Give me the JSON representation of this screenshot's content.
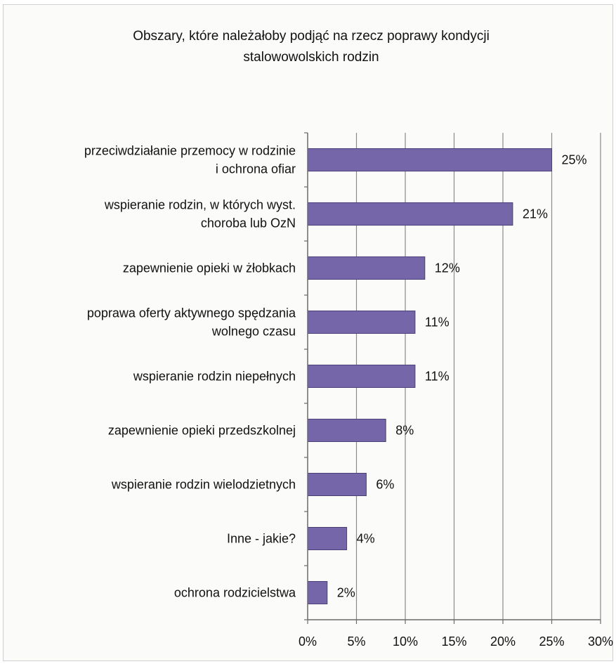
{
  "chart_data": {
    "type": "bar",
    "orientation": "horizontal",
    "title_lines": [
      "Obszary, które należałoby podjąć na rzecz poprawy kondycji",
      "stalowowolskich rodzin"
    ],
    "categories": [
      [
        "przeciwdziałanie przemocy w rodzinie",
        "i ochrona ofiar"
      ],
      [
        "wspieranie rodzin, w których wyst.",
        "choroba lub OzN"
      ],
      [
        "zapewnienie opieki w żłobkach"
      ],
      [
        "poprawa oferty aktywnego spędzania",
        "wolnego czasu"
      ],
      [
        "wspieranie rodzin niepełnych"
      ],
      [
        "zapewnienie opieki przedszkolnej"
      ],
      [
        "wspieranie rodzin wielodzietnych"
      ],
      [
        "Inne - jakie?"
      ],
      [
        "ochrona rodzicielstwa"
      ]
    ],
    "values": [
      25,
      21,
      12,
      11,
      11,
      8,
      6,
      4,
      2
    ],
    "value_labels": [
      "25%",
      "21%",
      "12%",
      "11%",
      "11%",
      "8%",
      "6%",
      "4%",
      "2%"
    ],
    "x_ticks": [
      "0%",
      "5%",
      "10%",
      "15%",
      "20%",
      "25%",
      "30%"
    ],
    "xlim": [
      0,
      30
    ],
    "grid": true,
    "legend": "none",
    "bar_color": "#7466a8"
  }
}
